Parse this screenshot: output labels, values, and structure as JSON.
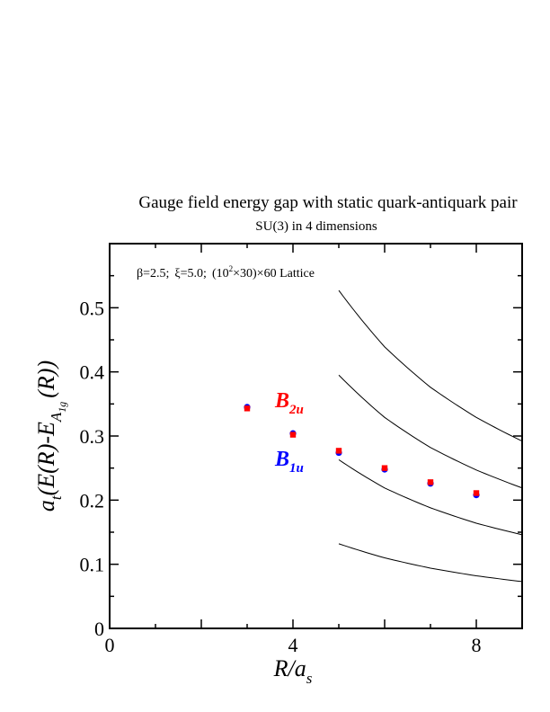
{
  "chart_data": {
    "type": "scatter",
    "title": "Gauge field energy gap with static quark-antiquark pair",
    "subtitle": "SU(3) in 4 dimensions",
    "annotation": {
      "beta": "β=2.5;",
      "xi": "ξ=5.0;",
      "lattice_open": "(10",
      "lattice_exp": "2",
      "lattice_close": "×30)×60 Lattice"
    },
    "xlabel": {
      "main": "R/a",
      "sub": "s"
    },
    "ylabel": {
      "prefix": "a",
      "prefix_sub": "t",
      "body": "(E(R)-E",
      "sub1": "A",
      "sub2": "1g",
      "tail": "(R))"
    },
    "xlim": [
      0,
      9
    ],
    "ylim": [
      0,
      0.6
    ],
    "x_ticks": [
      "0",
      "4",
      "8"
    ],
    "y_ticks": [
      "0",
      "0.1",
      "0.2",
      "0.3",
      "0.4",
      "0.5"
    ],
    "series": [
      {
        "name": "B1u",
        "label_main": "B",
        "label_sub": "1u",
        "color": "#0000ff",
        "x": [
          3,
          4,
          5,
          6,
          7,
          8
        ],
        "y": [
          0.345,
          0.304,
          0.274,
          0.248,
          0.226,
          0.208
        ]
      },
      {
        "name": "B2u",
        "label_main": "B",
        "label_sub": "2u",
        "color": "#ff0000",
        "x": [
          3,
          4,
          5,
          6,
          7,
          8
        ],
        "y": [
          0.343,
          0.302,
          0.277,
          0.25,
          0.228,
          0.211
        ]
      }
    ],
    "curves": [
      {
        "x": [
          5,
          6,
          7,
          8,
          9
        ],
        "y": [
          0.132,
          0.11,
          0.094,
          0.082,
          0.073
        ]
      },
      {
        "x": [
          5,
          6,
          7,
          8,
          9
        ],
        "y": [
          0.263,
          0.219,
          0.188,
          0.164,
          0.146
        ]
      },
      {
        "x": [
          5,
          6,
          7,
          8,
          9
        ],
        "y": [
          0.395,
          0.329,
          0.282,
          0.247,
          0.219
        ]
      },
      {
        "x": [
          5,
          6,
          7,
          8,
          9
        ],
        "y": [
          0.527,
          0.439,
          0.376,
          0.329,
          0.292
        ]
      }
    ],
    "grid": false
  }
}
